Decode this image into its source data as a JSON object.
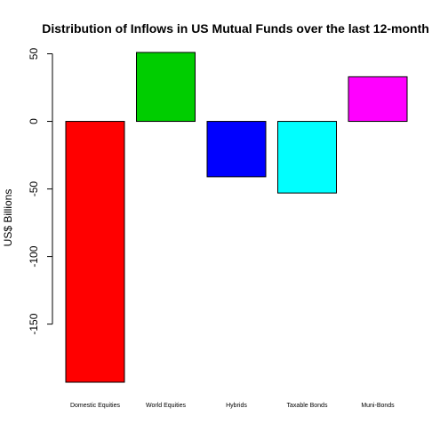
{
  "chart_data": {
    "type": "bar",
    "title": "Distribution of Inflows in US Mutual Funds  over the last 12-month",
    "xlabel": "",
    "ylabel": "US$ Billions",
    "categories": [
      "Domestic Equities",
      "World Equities",
      "Hybrids",
      "Taxable Bonds",
      "Muni-Bonds"
    ],
    "values": [
      -193,
      51,
      -41,
      -53,
      33
    ],
    "colors": [
      "#ff0000",
      "#00cd00",
      "#0000ff",
      "#00ffff",
      "#ff00ff"
    ],
    "yticks": [
      50,
      0,
      -50,
      -100,
      -150
    ],
    "ylim": [
      -193,
      51
    ],
    "grid": false,
    "legend": "none"
  }
}
